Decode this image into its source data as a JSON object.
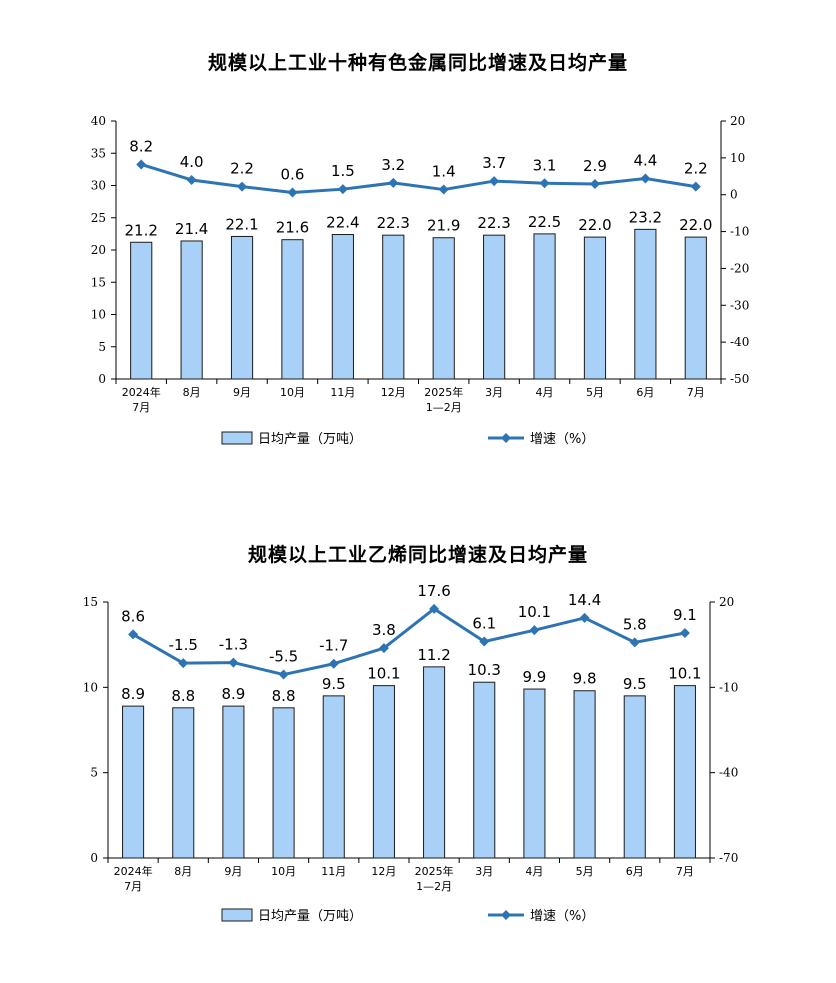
{
  "colors": {
    "bar_fill": "#a9d1f7",
    "bar_stroke": "#1c1c1c",
    "line": "#2e74b5",
    "axis": "#000000"
  },
  "chart_data": [
    {
      "type": "bar",
      "title": "规模以上工业十种有色金属同比增速及日均产量",
      "categories": [
        [
          "2024年",
          "7月"
        ],
        [
          "8月"
        ],
        [
          "9月"
        ],
        [
          "10月"
        ],
        [
          "11月"
        ],
        [
          "12月"
        ],
        [
          "2025年",
          "1—2月"
        ],
        [
          "3月"
        ],
        [
          "4月"
        ],
        [
          "5月"
        ],
        [
          "6月"
        ],
        [
          "7月"
        ]
      ],
      "series": [
        {
          "name": "日均产量（万吨）",
          "type": "bar",
          "axis": "left",
          "values": [
            21.2,
            21.4,
            22.1,
            21.6,
            22.4,
            22.3,
            21.9,
            22.3,
            22.5,
            22.0,
            23.2,
            22.0
          ],
          "labels": [
            "21.2",
            "21.4",
            "22.1",
            "21.6",
            "22.4",
            "22.3",
            "21.9",
            "22.3",
            "22.5",
            "22.0",
            "23.2",
            "22.0"
          ]
        },
        {
          "name": "增速（%）",
          "type": "line",
          "axis": "right",
          "values": [
            8.2,
            4.0,
            2.2,
            0.6,
            1.5,
            3.2,
            1.4,
            3.7,
            3.1,
            2.9,
            4.4,
            2.2
          ],
          "labels": [
            "8.2",
            "4.0",
            "2.2",
            "0.6",
            "1.5",
            "3.2",
            "1.4",
            "3.7",
            "3.1",
            "2.9",
            "4.4",
            "2.2"
          ]
        }
      ],
      "left_axis": {
        "min": 0,
        "max": 40,
        "ticks": [
          0,
          5,
          10,
          15,
          20,
          25,
          30,
          35,
          40
        ]
      },
      "right_axis": {
        "min": -50,
        "max": 20,
        "ticks": [
          -50,
          -40,
          -30,
          -20,
          -10,
          0,
          10,
          20
        ]
      },
      "legend": "bottom"
    },
    {
      "type": "bar",
      "title": "规模以上工业乙烯同比增速及日均产量",
      "categories": [
        [
          "2024年",
          "7月"
        ],
        [
          "8月"
        ],
        [
          "9月"
        ],
        [
          "10月"
        ],
        [
          "11月"
        ],
        [
          "12月"
        ],
        [
          "2025年",
          "1—2月"
        ],
        [
          "3月"
        ],
        [
          "4月"
        ],
        [
          "5月"
        ],
        [
          "6月"
        ],
        [
          "7月"
        ]
      ],
      "series": [
        {
          "name": "日均产量（万吨）",
          "type": "bar",
          "axis": "left",
          "values": [
            8.9,
            8.8,
            8.9,
            8.8,
            9.5,
            10.1,
            11.2,
            10.3,
            9.9,
            9.8,
            9.5,
            10.1
          ],
          "labels": [
            "8.9",
            "8.8",
            "8.9",
            "8.8",
            "9.5",
            "10.1",
            "11.2",
            "10.3",
            "9.9",
            "9.8",
            "9.5",
            "10.1"
          ]
        },
        {
          "name": "增速（%）",
          "type": "line",
          "axis": "right",
          "values": [
            8.6,
            -1.5,
            -1.3,
            -5.5,
            -1.7,
            3.8,
            17.6,
            6.1,
            10.1,
            14.4,
            5.8,
            9.1
          ],
          "labels": [
            "8.6",
            "-1.5",
            "-1.3",
            "-5.5",
            "-1.7",
            "3.8",
            "17.6",
            "6.1",
            "10.1",
            "14.4",
            "5.8",
            "9.1"
          ]
        }
      ],
      "left_axis": {
        "min": 0,
        "max": 15,
        "ticks": [
          0,
          5,
          10,
          15
        ]
      },
      "right_axis": {
        "min": -70,
        "max": 20,
        "ticks": [
          -70,
          -40,
          -10,
          20
        ]
      },
      "legend": "bottom"
    }
  ]
}
